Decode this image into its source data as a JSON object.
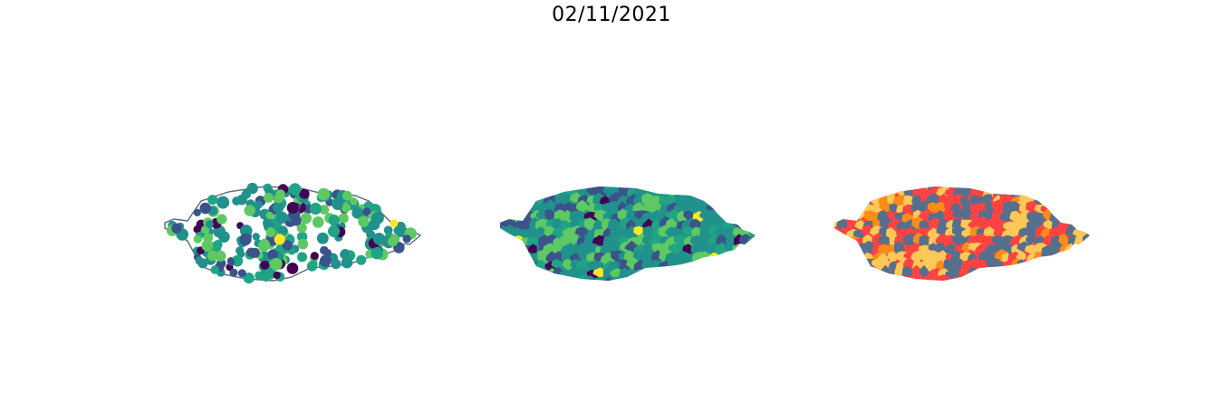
{
  "figure": {
    "title": "02/11/2021"
  },
  "colors": {
    "border": "#59677f",
    "viridis": [
      "#440154",
      "#3b528b",
      "#21918c",
      "#20a486",
      "#5ec962",
      "#fde725"
    ],
    "categorical": [
      "#55708d",
      "#ffc857",
      "#ff4242",
      "#ff8c1a"
    ]
  },
  "maps": [
    {
      "name": "municipality-points",
      "kind": "points",
      "palette": "viridis"
    },
    {
      "name": "municipality-choropleth-continuous",
      "kind": "choropleth",
      "palette": "viridis"
    },
    {
      "name": "municipality-choropleth-categorical",
      "kind": "choropleth",
      "palette": "categorical"
    }
  ]
}
